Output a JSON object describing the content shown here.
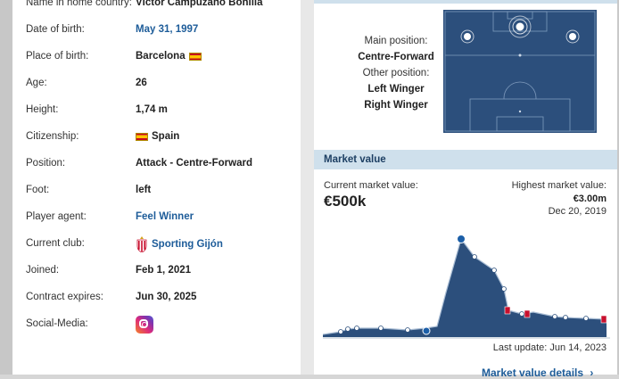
{
  "player_info": {
    "rows": [
      {
        "label": "Name in home country:",
        "value": "Víctor Campuzano Bonilla"
      },
      {
        "label": "Date of birth:",
        "value": "May 31, 1997"
      },
      {
        "label": "Place of birth:",
        "value": "Barcelona"
      },
      {
        "label": "Age:",
        "value": "26"
      },
      {
        "label": "Height:",
        "value": "1,74 m"
      },
      {
        "label": "Citizenship:",
        "value": "Spain"
      },
      {
        "label": "Position:",
        "value": "Attack - Centre-Forward"
      },
      {
        "label": "Foot:",
        "value": "left"
      },
      {
        "label": "Player agent:",
        "value": "Feel Winner"
      },
      {
        "label": "Current club:",
        "value": "Sporting Gijón"
      },
      {
        "label": "Joined:",
        "value": "Feb 1, 2021"
      },
      {
        "label": "Contract expires:",
        "value": "Jun 30, 2025"
      },
      {
        "label": "Social-Media:",
        "value": ""
      }
    ],
    "icons": {
      "flag": "spain-flag-icon",
      "club": "sporting-gijon-crest-icon",
      "social": "instagram-icon"
    }
  },
  "position": {
    "main_label": "Main position:",
    "main_value": "Centre-Forward",
    "other_label": "Other position:",
    "other_values": [
      "Left Winger",
      "Right Winger"
    ],
    "field_color": "#2c4f7c"
  },
  "market_value": {
    "title": "Market value",
    "current_label": "Current market value:",
    "current_value": "€500k",
    "highest_label": "Highest market value:",
    "highest_value": "€3.00m",
    "highest_date": "Dec 20, 2019",
    "last_update": "Last update: Jun 14, 2023",
    "details_link": "Market value details",
    "chart_color": "#2c4f7c"
  }
}
